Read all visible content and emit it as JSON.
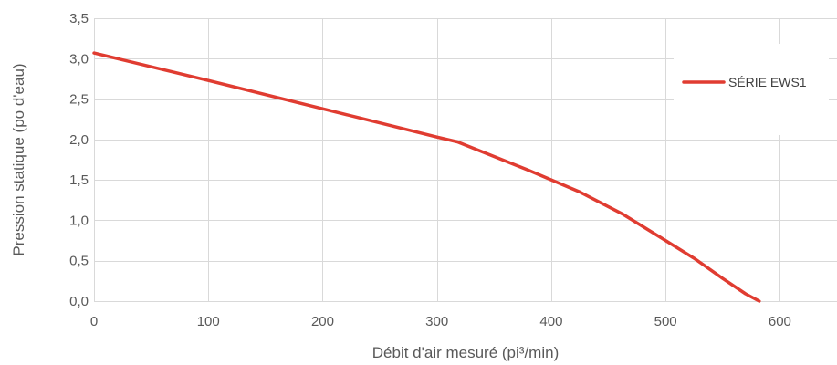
{
  "chart_data": {
    "type": "line",
    "xlabel": "Débit d'air mesuré (pi³/min)",
    "ylabel": "Pression statique (po d'eau)",
    "xlim": [
      0,
      650
    ],
    "ylim": [
      0,
      3.5
    ],
    "x_ticks": [
      0,
      100,
      200,
      300,
      400,
      500,
      600
    ],
    "y_ticks": [
      0,
      0.5,
      1.0,
      1.5,
      2.0,
      2.5,
      3.0,
      3.5
    ],
    "x_tick_labels": [
      "0",
      "100",
      "200",
      "300",
      "400",
      "500",
      "600"
    ],
    "y_tick_labels": [
      "0,0",
      "0,5",
      "1,0",
      "1,5",
      "2,0",
      "2,5",
      "3,0",
      "3,5"
    ],
    "grid": true,
    "legend_position": "right",
    "series": [
      {
        "name": "SÉRIE EWS1",
        "color": "#e03c31",
        "x": [
          0,
          100,
          200,
          300,
          318,
          380,
          425,
          462,
          500,
          525,
          550,
          570,
          582
        ],
        "y": [
          3.07,
          2.73,
          2.38,
          2.03,
          1.97,
          1.62,
          1.35,
          1.08,
          0.75,
          0.53,
          0.28,
          0.09,
          0.0
        ]
      }
    ]
  }
}
